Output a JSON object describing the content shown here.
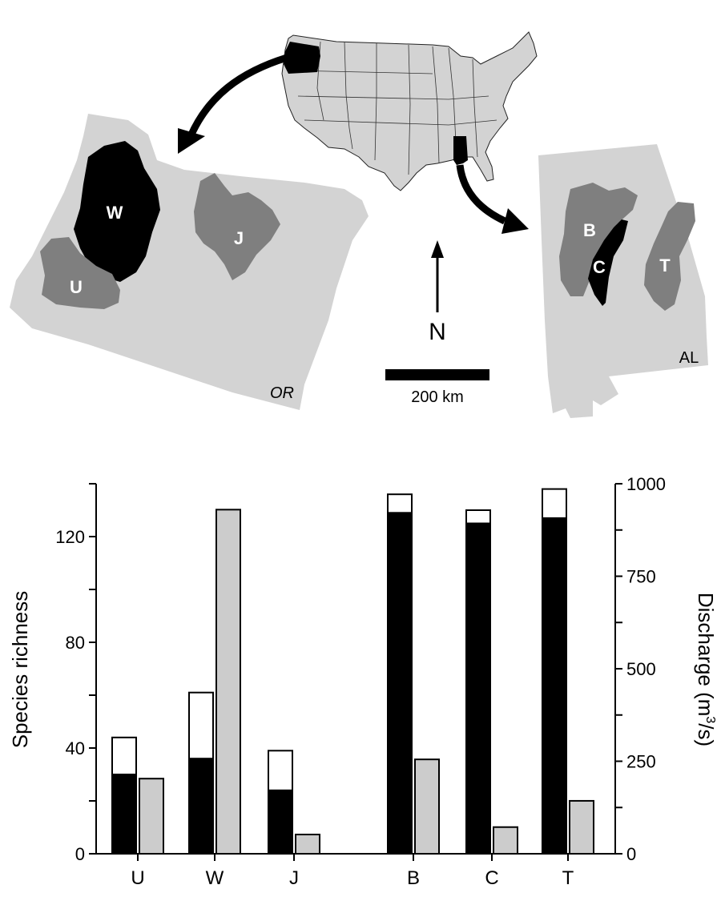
{
  "map": {
    "north_label": "N",
    "scale_label": "200 km",
    "states": [
      {
        "label": "OR"
      },
      {
        "label": "AL"
      }
    ],
    "basins": [
      {
        "label": "W"
      },
      {
        "label": "J"
      },
      {
        "label": "U"
      },
      {
        "label": "B"
      },
      {
        "label": "C"
      },
      {
        "label": "T"
      }
    ],
    "colors": {
      "state_fill": "#d3d3d3",
      "basin_fill": "#7f7f7f",
      "highlight_fill": "#000000",
      "label_light": "#ffffff"
    }
  },
  "chart_data": {
    "type": "bar",
    "categories": [
      "U",
      "W",
      "J",
      "B",
      "C",
      "T"
    ],
    "ylabel": "Species richness",
    "y2label_main": "Discharge (m",
    "y2label_sup": "3",
    "y2label_end": "/s)",
    "ylim": [
      0,
      140
    ],
    "y2lim": [
      0,
      1000
    ],
    "yticks": [
      0,
      40,
      80,
      120
    ],
    "y2ticks": [
      0,
      250,
      500,
      750,
      1000
    ],
    "series": [
      {
        "values": [
          30,
          36,
          24,
          129,
          125,
          127
        ],
        "color": "#000000"
      },
      {
        "values": [
          14,
          25,
          15,
          7,
          5,
          11
        ],
        "color": "#ffffff"
      },
      {
        "values": [
          203,
          930,
          52,
          255,
          72,
          143
        ],
        "color": "#cccccc",
        "axis": "right"
      }
    ],
    "grid": false,
    "legend": "none"
  }
}
